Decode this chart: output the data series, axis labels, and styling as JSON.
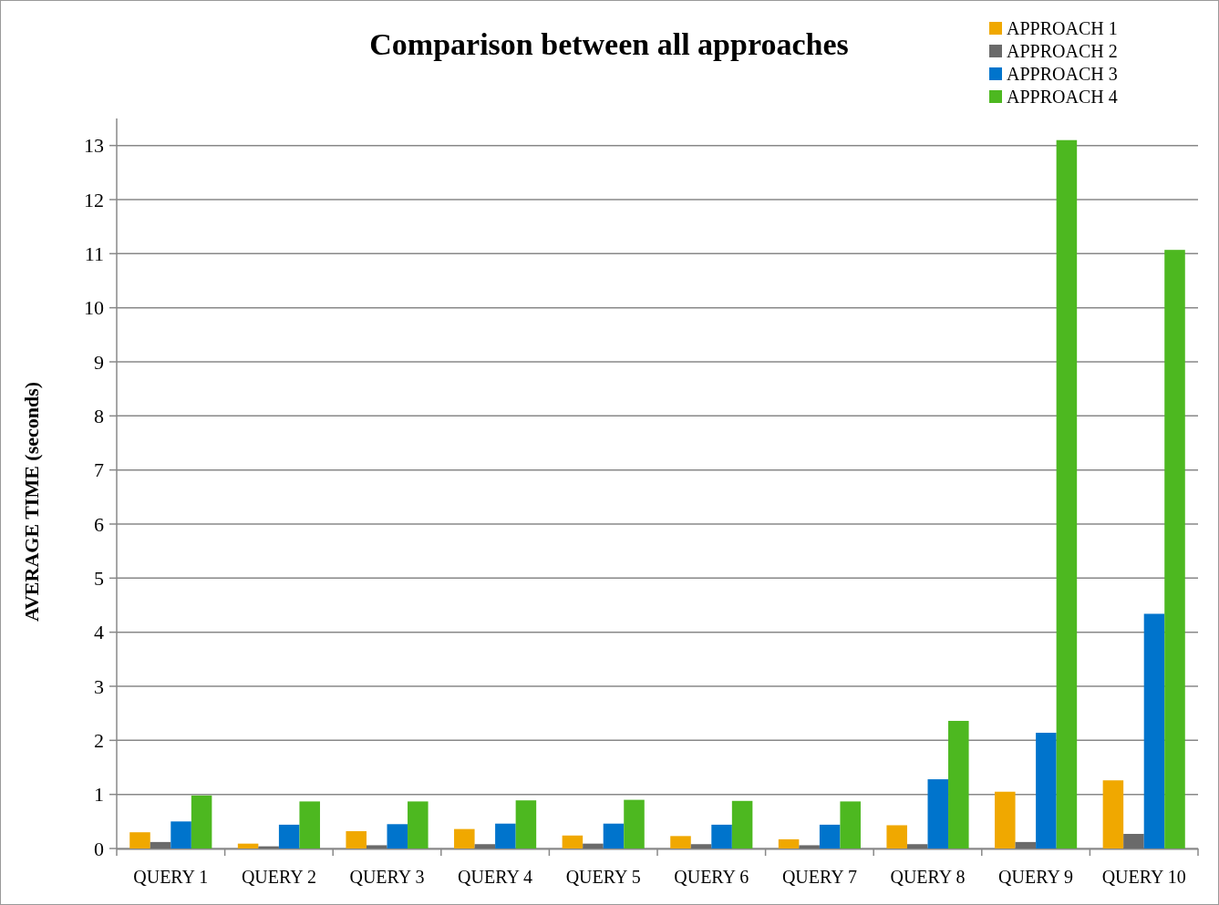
{
  "chart_data": {
    "type": "bar",
    "title": "Comparison between all approaches",
    "ylabel": "AVERAGE TIME (seconds)",
    "categories": [
      "QUERY 1",
      "QUERY 2",
      "QUERY 3",
      "QUERY 4",
      "QUERY 5",
      "QUERY 6",
      "QUERY 7",
      "QUERY 8",
      "QUERY 9",
      "QUERY 10"
    ],
    "series": [
      {
        "name": "APPROACH 1",
        "color": "#f0a800",
        "values": [
          0.3,
          0.09,
          0.32,
          0.36,
          0.24,
          0.23,
          0.17,
          0.43,
          1.05,
          1.26
        ]
      },
      {
        "name": "APPROACH 2",
        "color": "#6a6a6a",
        "values": [
          0.12,
          0.04,
          0.06,
          0.08,
          0.09,
          0.08,
          0.06,
          0.08,
          0.12,
          0.27
        ]
      },
      {
        "name": "APPROACH 3",
        "color": "#0074cc",
        "values": [
          0.5,
          0.44,
          0.45,
          0.46,
          0.46,
          0.44,
          0.44,
          1.28,
          2.14,
          4.34
        ]
      },
      {
        "name": "APPROACH 4",
        "color": "#4db820",
        "values": [
          0.98,
          0.87,
          0.87,
          0.89,
          0.9,
          0.88,
          0.87,
          2.36,
          13.1,
          11.07
        ]
      }
    ],
    "ylim": [
      0,
      13.5
    ],
    "yticks": [
      0,
      1,
      2,
      3,
      4,
      5,
      6,
      7,
      8,
      9,
      10,
      11,
      12,
      13
    ],
    "grid": "y",
    "legend": "top right"
  }
}
